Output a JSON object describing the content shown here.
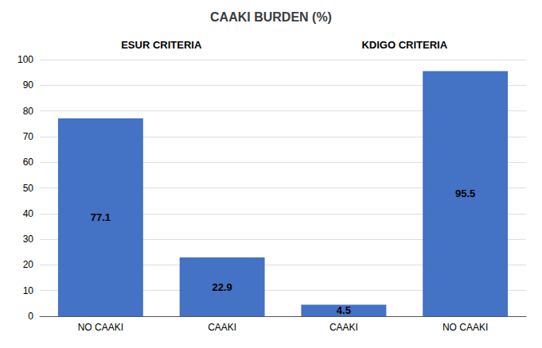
{
  "chart_data": {
    "type": "bar",
    "title": "CAAKI BURDEN (%)",
    "categories": [
      "NO CAAKI",
      "CAAKI",
      "CAAKI",
      "NO CAAKI"
    ],
    "values": [
      77.1,
      22.9,
      4.5,
      95.5
    ],
    "color": "#4472C4",
    "ylim": [
      0,
      100
    ],
    "yticks": [
      0,
      10,
      20,
      30,
      40,
      50,
      60,
      70,
      80,
      90,
      100
    ],
    "grid": true,
    "data_labels": true,
    "annotations": [
      "ESUR CRITERIA",
      "KDIGO CRITERIA"
    ]
  }
}
